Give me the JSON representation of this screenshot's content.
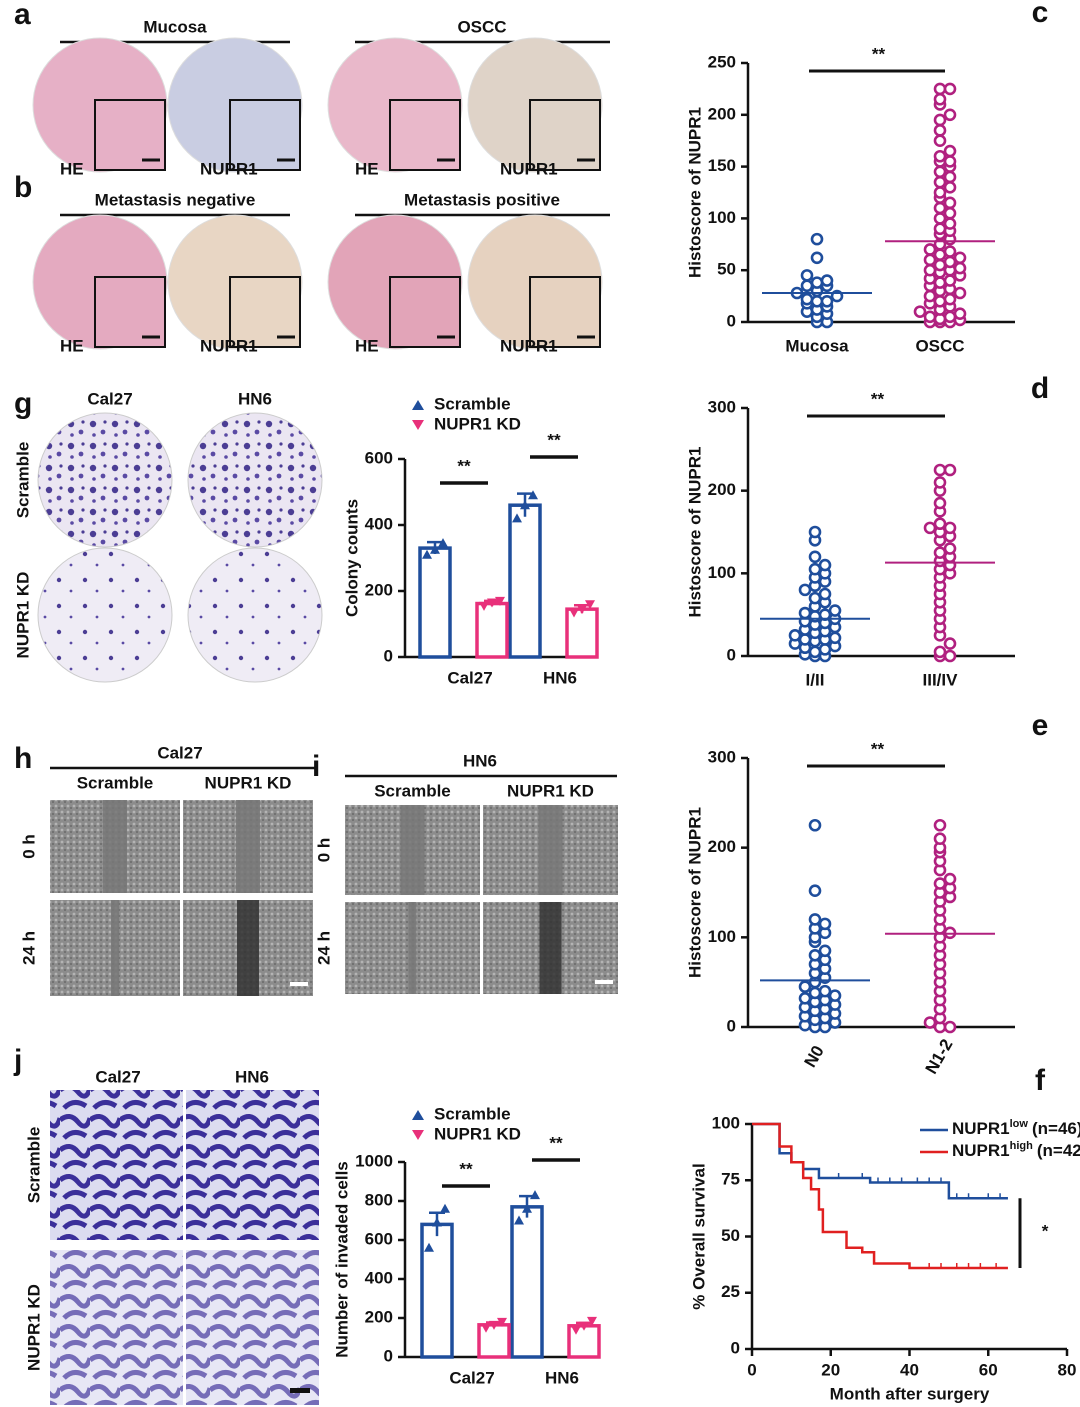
{
  "images": {
    "a": {
      "letter": "a",
      "titles": [
        "Mucosa",
        "OSCC"
      ],
      "labels": [
        "HE",
        "NUPR1",
        "HE",
        "NUPR1"
      ]
    },
    "b": {
      "letter": "b",
      "titles": [
        "Metastasis negative",
        "Metastasis positive"
      ],
      "labels": [
        "HE",
        "NUPR1",
        "HE",
        "NUPR1"
      ]
    },
    "g": {
      "letter": "g",
      "columns": [
        "Cal27",
        "HN6"
      ],
      "rows": [
        "Scramble",
        "NUPR1 KD"
      ]
    },
    "h": {
      "letter": "h",
      "title": "Cal27",
      "columns": [
        "Scramble",
        "NUPR1 KD"
      ],
      "rows": [
        "0 h",
        "24 h"
      ]
    },
    "i": {
      "letter": "i",
      "title": "HN6",
      "columns": [
        "Scramble",
        "NUPR1 KD"
      ],
      "rows": [
        "0 h",
        "24 h"
      ]
    },
    "j": {
      "letter": "j",
      "columns": [
        "Cal27",
        "HN6"
      ],
      "rows": [
        "Scramble",
        "NUPR1 KD"
      ]
    }
  },
  "chart_data": [
    {
      "type": "dot",
      "letter": "c",
      "ylabel": "Histoscore of NUPR1",
      "categories": [
        "Mucosa",
        "OSCC"
      ],
      "annotation": "**",
      "ylim": [
        0,
        250
      ],
      "yticks": [
        0,
        50,
        100,
        150,
        200,
        250
      ],
      "groups": [
        {
          "color": "#1f4e9c",
          "mean": 28,
          "values": [
            0,
            0,
            5,
            8,
            10,
            12,
            15,
            18,
            20,
            20,
            22,
            25,
            28,
            30,
            35,
            35,
            38,
            40,
            45,
            62,
            80
          ]
        },
        {
          "color": "#b0207f",
          "mean": 78,
          "values": [
            0,
            0,
            0,
            2,
            3,
            5,
            5,
            8,
            10,
            12,
            15,
            18,
            20,
            22,
            25,
            28,
            30,
            32,
            35,
            38,
            40,
            42,
            45,
            48,
            50,
            50,
            52,
            55,
            58,
            60,
            62,
            65,
            68,
            70,
            75,
            80,
            85,
            88,
            90,
            95,
            100,
            105,
            110,
            115,
            120,
            125,
            130,
            135,
            140,
            145,
            150,
            155,
            155,
            160,
            165,
            175,
            185,
            195,
            200,
            210,
            215,
            225,
            225
          ]
        }
      ]
    },
    {
      "type": "dot",
      "letter": "d",
      "ylabel": "Histoscore of NUPR1",
      "categories": [
        "I/II",
        "III/IV"
      ],
      "annotation": "**",
      "ylim": [
        0,
        300
      ],
      "yticks": [
        0,
        100,
        200,
        300
      ],
      "groups": [
        {
          "color": "#1f4e9c",
          "mean": 45,
          "values": [
            0,
            0,
            2,
            5,
            8,
            10,
            12,
            15,
            18,
            20,
            20,
            22,
            25,
            28,
            30,
            32,
            35,
            38,
            40,
            42,
            45,
            48,
            50,
            52,
            55,
            60,
            65,
            70,
            75,
            80,
            85,
            90,
            95,
            100,
            105,
            110,
            120,
            140,
            150
          ]
        },
        {
          "color": "#b0207f",
          "mean": 113,
          "values": [
            0,
            0,
            5,
            15,
            25,
            35,
            45,
            55,
            65,
            75,
            85,
            95,
            100,
            105,
            110,
            115,
            120,
            125,
            130,
            140,
            145,
            150,
            155,
            155,
            160,
            175,
            185,
            200,
            210,
            225,
            225
          ]
        }
      ]
    },
    {
      "type": "dot",
      "letter": "e",
      "ylabel": "Histoscore of NUPR1",
      "categories": [
        "N0",
        "N1-2"
      ],
      "annotation": "**",
      "ylim": [
        0,
        300
      ],
      "yticks": [
        0,
        100,
        200,
        300
      ],
      "groups": [
        {
          "color": "#1f4e9c",
          "mean": 52,
          "values": [
            0,
            0,
            2,
            5,
            8,
            10,
            12,
            15,
            18,
            20,
            22,
            25,
            28,
            30,
            32,
            35,
            38,
            40,
            45,
            50,
            55,
            60,
            65,
            70,
            75,
            80,
            85,
            95,
            100,
            105,
            110,
            115,
            120,
            152,
            225
          ]
        },
        {
          "color": "#b0207f",
          "mean": 104,
          "values": [
            0,
            0,
            5,
            10,
            20,
            30,
            40,
            50,
            60,
            70,
            80,
            90,
            100,
            105,
            110,
            120,
            130,
            140,
            145,
            150,
            155,
            160,
            165,
            175,
            185,
            195,
            200,
            210,
            225
          ]
        }
      ]
    },
    {
      "type": "bar",
      "ylabel": "Colony counts",
      "categories": [
        "Cal27",
        "HN6"
      ],
      "annotation": "**",
      "ylim": [
        0,
        600
      ],
      "yticks": [
        0,
        200,
        400,
        600
      ],
      "series": [
        {
          "name": "Scramble",
          "color": "#1f4e9c",
          "values": [
            330,
            460
          ],
          "errors": [
            18,
            35
          ],
          "points": [
            [
              310,
              325,
              345
            ],
            [
              420,
              460,
              490
            ]
          ]
        },
        {
          "name": "NUPR1 KD",
          "color": "#e8307a",
          "values": [
            162,
            145
          ],
          "errors": [
            8,
            12
          ],
          "points": [
            [
              155,
              165,
              170
            ],
            [
              135,
              145,
              160
            ]
          ]
        }
      ]
    },
    {
      "type": "bar",
      "ylabel": "Number of invaded cells",
      "categories": [
        "Cal27",
        "HN6"
      ],
      "annotation": "**",
      "ylim": [
        0,
        1000
      ],
      "yticks": [
        0,
        200,
        400,
        600,
        800,
        1000
      ],
      "series": [
        {
          "name": "Scramble",
          "color": "#1f4e9c",
          "values": [
            680,
            770
          ],
          "errors": [
            60,
            55
          ],
          "points": [
            [
              560,
              690,
              760
            ],
            [
              700,
              760,
              830
            ]
          ]
        },
        {
          "name": "NUPR1 KD",
          "color": "#e8307a",
          "values": [
            165,
            160
          ],
          "errors": [
            12,
            15
          ],
          "points": [
            [
              150,
              165,
              180
            ],
            [
              140,
              160,
              185
            ]
          ]
        }
      ]
    },
    {
      "type": "survival",
      "letter": "f",
      "ylabel": "% Overall survival",
      "xlabel": "Month after surgery",
      "annotation": "*",
      "xlim": [
        0,
        80
      ],
      "xticks": [
        0,
        20,
        40,
        60,
        80
      ],
      "ylim": [
        0,
        100
      ],
      "yticks": [
        0,
        25,
        50,
        75,
        100
      ],
      "series": [
        {
          "name": "NUPR1",
          "name_sup": "low",
          "name_suffix": "(n=46)",
          "color": "#1f4e9c",
          "x": [
            0,
            7,
            10,
            13,
            17,
            30,
            50,
            65
          ],
          "values": [
            100,
            87,
            83,
            80,
            76,
            74,
            67,
            67
          ],
          "censor_x": [
            22,
            28,
            32,
            35,
            38,
            42,
            45,
            48,
            52,
            55,
            60,
            63
          ]
        },
        {
          "name": "NUPR1",
          "name_sup": "high",
          "name_suffix": "(n=42)",
          "color": "#e02020",
          "x": [
            0,
            7,
            10,
            13,
            15,
            17,
            18,
            24,
            28,
            31,
            40,
            65
          ],
          "values": [
            100,
            90,
            83,
            76,
            71,
            62,
            52,
            45,
            43,
            38,
            36,
            36
          ],
          "censor_x": [
            45,
            48,
            52,
            55,
            58,
            62
          ]
        }
      ]
    }
  ]
}
